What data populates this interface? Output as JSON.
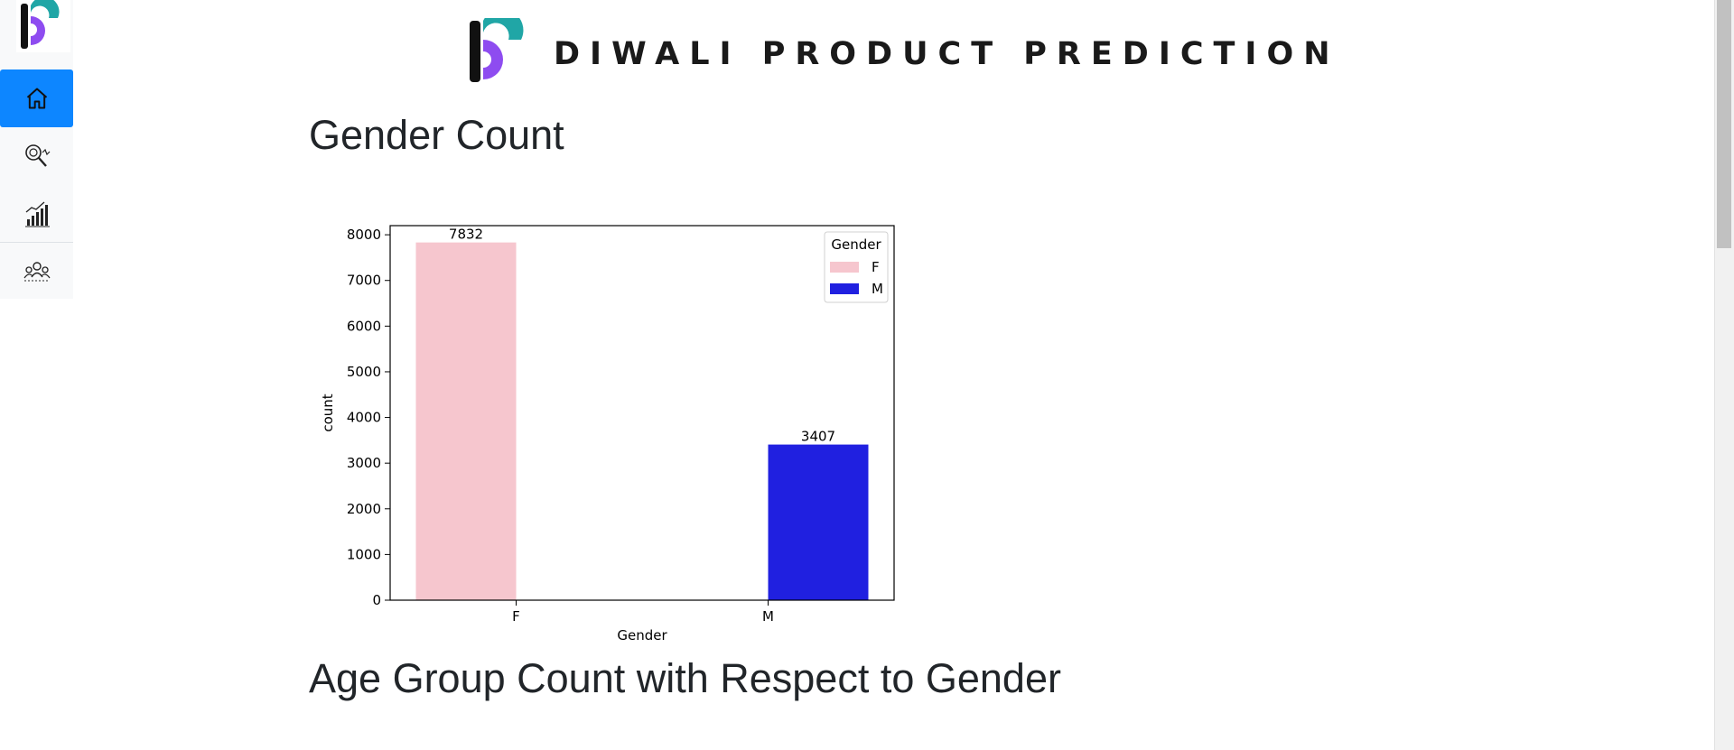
{
  "sidebar": {
    "items": [
      {
        "icon": "home-icon",
        "active": true
      },
      {
        "icon": "analysis-magnifier-icon",
        "active": false
      },
      {
        "icon": "bar-growth-icon",
        "active": false
      },
      {
        "icon": "team-icon",
        "active": false
      }
    ]
  },
  "header": {
    "banner_title": "DIWALI PRODUCT PREDICTION"
  },
  "sections": {
    "gender_title": "Gender Count",
    "age_title": "Age Group Count with Respect to Gender"
  },
  "chart_data": {
    "type": "bar",
    "categories": [
      "F",
      "M"
    ],
    "values": [
      7832,
      3407
    ],
    "bar_colors": [
      "#f6c6ce",
      "#2020e0"
    ],
    "data_labels": [
      "7832",
      "3407"
    ],
    "xlabel": "Gender",
    "ylabel": "count",
    "ylim": [
      0,
      8200
    ],
    "yticks": [
      0,
      1000,
      2000,
      3000,
      4000,
      5000,
      6000,
      7000,
      8000
    ],
    "legend": {
      "title": "Gender",
      "position": "top-right",
      "entries": [
        {
          "label": "F",
          "color": "#f6c6ce"
        },
        {
          "label": "M",
          "color": "#2020e0"
        }
      ]
    }
  }
}
